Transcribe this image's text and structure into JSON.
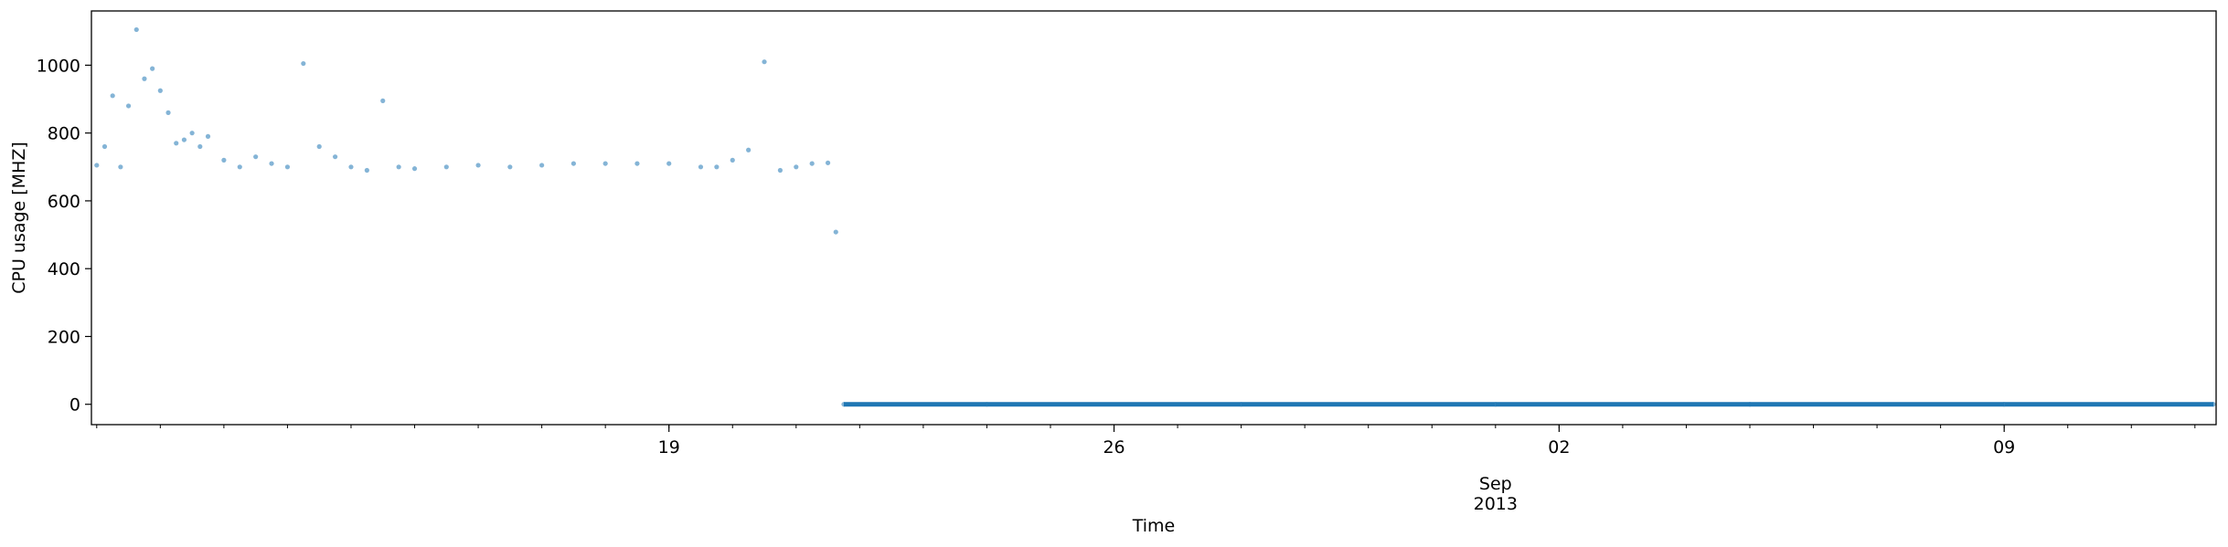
{
  "chart_data": {
    "type": "scatter",
    "xlabel": "Time",
    "ylabel": "CPU usage [MHZ]",
    "x_axis_type": "date",
    "xlim": [
      "2013-08-09T22:00",
      "2013-09-12T08:00"
    ],
    "ylim": [
      -60,
      1160
    ],
    "y_ticks": [
      0,
      200,
      400,
      600,
      800,
      1000
    ],
    "x_major_ticks": [
      {
        "date": "2013-08-19",
        "label": "19"
      },
      {
        "date": "2013-08-26",
        "label": "26"
      },
      {
        "date": "2013-09-02",
        "label": "02"
      },
      {
        "date": "2013-09-09",
        "label": "09"
      }
    ],
    "x_axis_sublabel": [
      "Sep",
      "2013"
    ],
    "grid": false,
    "point_color": "#1f77b4",
    "series": [
      {
        "points": [
          [
            "2013-08-10T00:00",
            705
          ],
          [
            "2013-08-10T03:00",
            760
          ],
          [
            "2013-08-10T06:00",
            910
          ],
          [
            "2013-08-10T09:00",
            700
          ],
          [
            "2013-08-10T12:00",
            880
          ],
          [
            "2013-08-10T15:00",
            1105
          ],
          [
            "2013-08-10T18:00",
            960
          ],
          [
            "2013-08-10T21:00",
            990
          ],
          [
            "2013-08-11T00:00",
            925
          ],
          [
            "2013-08-11T03:00",
            860
          ],
          [
            "2013-08-11T06:00",
            770
          ],
          [
            "2013-08-11T09:00",
            780
          ],
          [
            "2013-08-11T12:00",
            800
          ],
          [
            "2013-08-11T15:00",
            760
          ],
          [
            "2013-08-11T18:00",
            790
          ],
          [
            "2013-08-12T00:00",
            720
          ],
          [
            "2013-08-12T06:00",
            700
          ],
          [
            "2013-08-12T12:00",
            730
          ],
          [
            "2013-08-12T18:00",
            710
          ],
          [
            "2013-08-13T00:00",
            700
          ],
          [
            "2013-08-13T06:00",
            1005
          ],
          [
            "2013-08-13T12:00",
            760
          ],
          [
            "2013-08-13T18:00",
            730
          ],
          [
            "2013-08-14T00:00",
            700
          ],
          [
            "2013-08-14T06:00",
            690
          ],
          [
            "2013-08-14T12:00",
            895
          ],
          [
            "2013-08-14T18:00",
            700
          ],
          [
            "2013-08-15T00:00",
            695
          ],
          [
            "2013-08-15T12:00",
            700
          ],
          [
            "2013-08-16T00:00",
            705
          ],
          [
            "2013-08-16T12:00",
            700
          ],
          [
            "2013-08-17T00:00",
            705
          ],
          [
            "2013-08-17T12:00",
            710
          ],
          [
            "2013-08-18T00:00",
            710
          ],
          [
            "2013-08-18T12:00",
            710
          ],
          [
            "2013-08-19T00:00",
            710
          ],
          [
            "2013-08-19T12:00",
            700
          ],
          [
            "2013-08-19T18:00",
            700
          ],
          [
            "2013-08-20T00:00",
            720
          ],
          [
            "2013-08-20T06:00",
            750
          ],
          [
            "2013-08-20T12:00",
            1010
          ],
          [
            "2013-08-20T18:00",
            690
          ],
          [
            "2013-08-21T00:00",
            700
          ],
          [
            "2013-08-21T06:00",
            710
          ],
          [
            "2013-08-21T12:00",
            712
          ],
          [
            "2013-08-21T15:00",
            508
          ],
          [
            "2013-08-21T18:00",
            0
          ],
          [
            "2013-08-24T00:00",
            0
          ],
          [
            "2013-08-28T00:00",
            0
          ],
          [
            "2013-09-01T00:00",
            0
          ],
          [
            "2013-09-05T00:00",
            0
          ],
          [
            "2013-09-09T00:00",
            0
          ],
          [
            "2013-09-12T07:00",
            0
          ]
        ]
      }
    ]
  }
}
